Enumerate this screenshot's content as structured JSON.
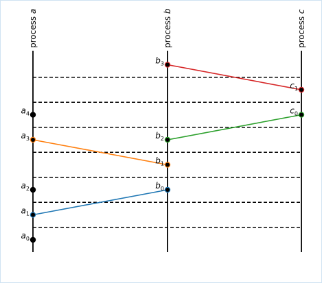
{
  "processes": [
    {
      "id": "a",
      "label_prefix": "process ",
      "label_var": "a"
    },
    {
      "id": "b",
      "label_prefix": "process ",
      "label_var": "b"
    },
    {
      "id": "c",
      "label_prefix": "process ",
      "label_var": "c"
    }
  ],
  "events": [
    {
      "id": "a0",
      "process": "a",
      "base": "a",
      "sub": "0",
      "time": 0,
      "color": "#000000"
    },
    {
      "id": "a1",
      "process": "a",
      "base": "a",
      "sub": "1",
      "time": 1,
      "color": "#1f77b4"
    },
    {
      "id": "a2",
      "process": "a",
      "base": "a",
      "sub": "2",
      "time": 2,
      "color": "#000000"
    },
    {
      "id": "b0",
      "process": "b",
      "base": "b",
      "sub": "0",
      "time": 2,
      "color": "#1f77b4"
    },
    {
      "id": "b1",
      "process": "b",
      "base": "b",
      "sub": "1",
      "time": 3,
      "color": "#ff7f0e"
    },
    {
      "id": "a3",
      "process": "a",
      "base": "a",
      "sub": "3",
      "time": 4,
      "color": "#ff7f0e"
    },
    {
      "id": "b2",
      "process": "b",
      "base": "b",
      "sub": "2",
      "time": 4,
      "color": "#2ca02c"
    },
    {
      "id": "a4",
      "process": "a",
      "base": "a",
      "sub": "4",
      "time": 5,
      "color": "#000000"
    },
    {
      "id": "c0",
      "process": "c",
      "base": "c",
      "sub": "0",
      "time": 5,
      "color": "#2ca02c"
    },
    {
      "id": "c1",
      "process": "c",
      "base": "c",
      "sub": "1",
      "time": 6,
      "color": "#d62728"
    },
    {
      "id": "b3",
      "process": "b",
      "base": "b",
      "sub": "3",
      "time": 7,
      "color": "#d62728"
    }
  ],
  "messages": [
    {
      "from": "a1",
      "to": "b0",
      "color": "#1f77b4"
    },
    {
      "from": "a3",
      "to": "b1",
      "color": "#ff7f0e"
    },
    {
      "from": "b2",
      "to": "c0",
      "color": "#2ca02c"
    },
    {
      "from": "b3",
      "to": "c1",
      "color": "#d62728"
    }
  ],
  "separators_between_times": [
    0.5,
    1.5,
    2.5,
    3.5,
    4.5,
    5.5,
    6.5
  ]
}
